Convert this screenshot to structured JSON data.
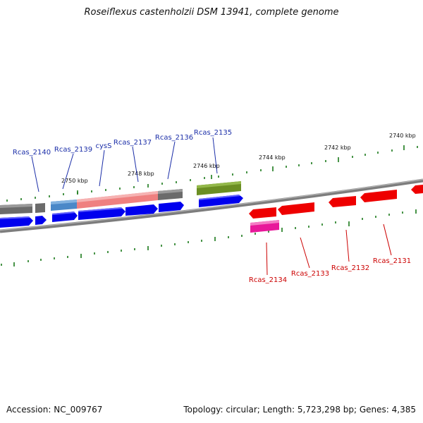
{
  "title": "Roseiflexus castenholzii DSM 13941, complete genome",
  "footer": {
    "accession": "Accession: NC_009767",
    "summary": "Topology: circular; Length: 5,723,298 bp; Genes: 4,385"
  },
  "scale_labels": [
    "2750 kbp",
    "2748 kbp",
    "2746 kbp",
    "2744 kbp",
    "2742 kbp",
    "2740 kbp"
  ],
  "gene_labels_top": [
    "Rcas_2140",
    "Rcas_2139",
    "cysS",
    "Rcas_2137",
    "Rcas_2136",
    "Rcas_2135"
  ],
  "gene_labels_bottom": [
    "Rcas_2134",
    "Rcas_2133",
    "Rcas_2132",
    "Rcas_2131"
  ],
  "colors": {
    "forward_gene": "#0000ee",
    "reverse_gene": "#ee0000",
    "label_forward": "#1b2ea8",
    "label_reverse": "#cc0000",
    "tick": "#1a7a1a",
    "backbone": "#808080"
  }
}
